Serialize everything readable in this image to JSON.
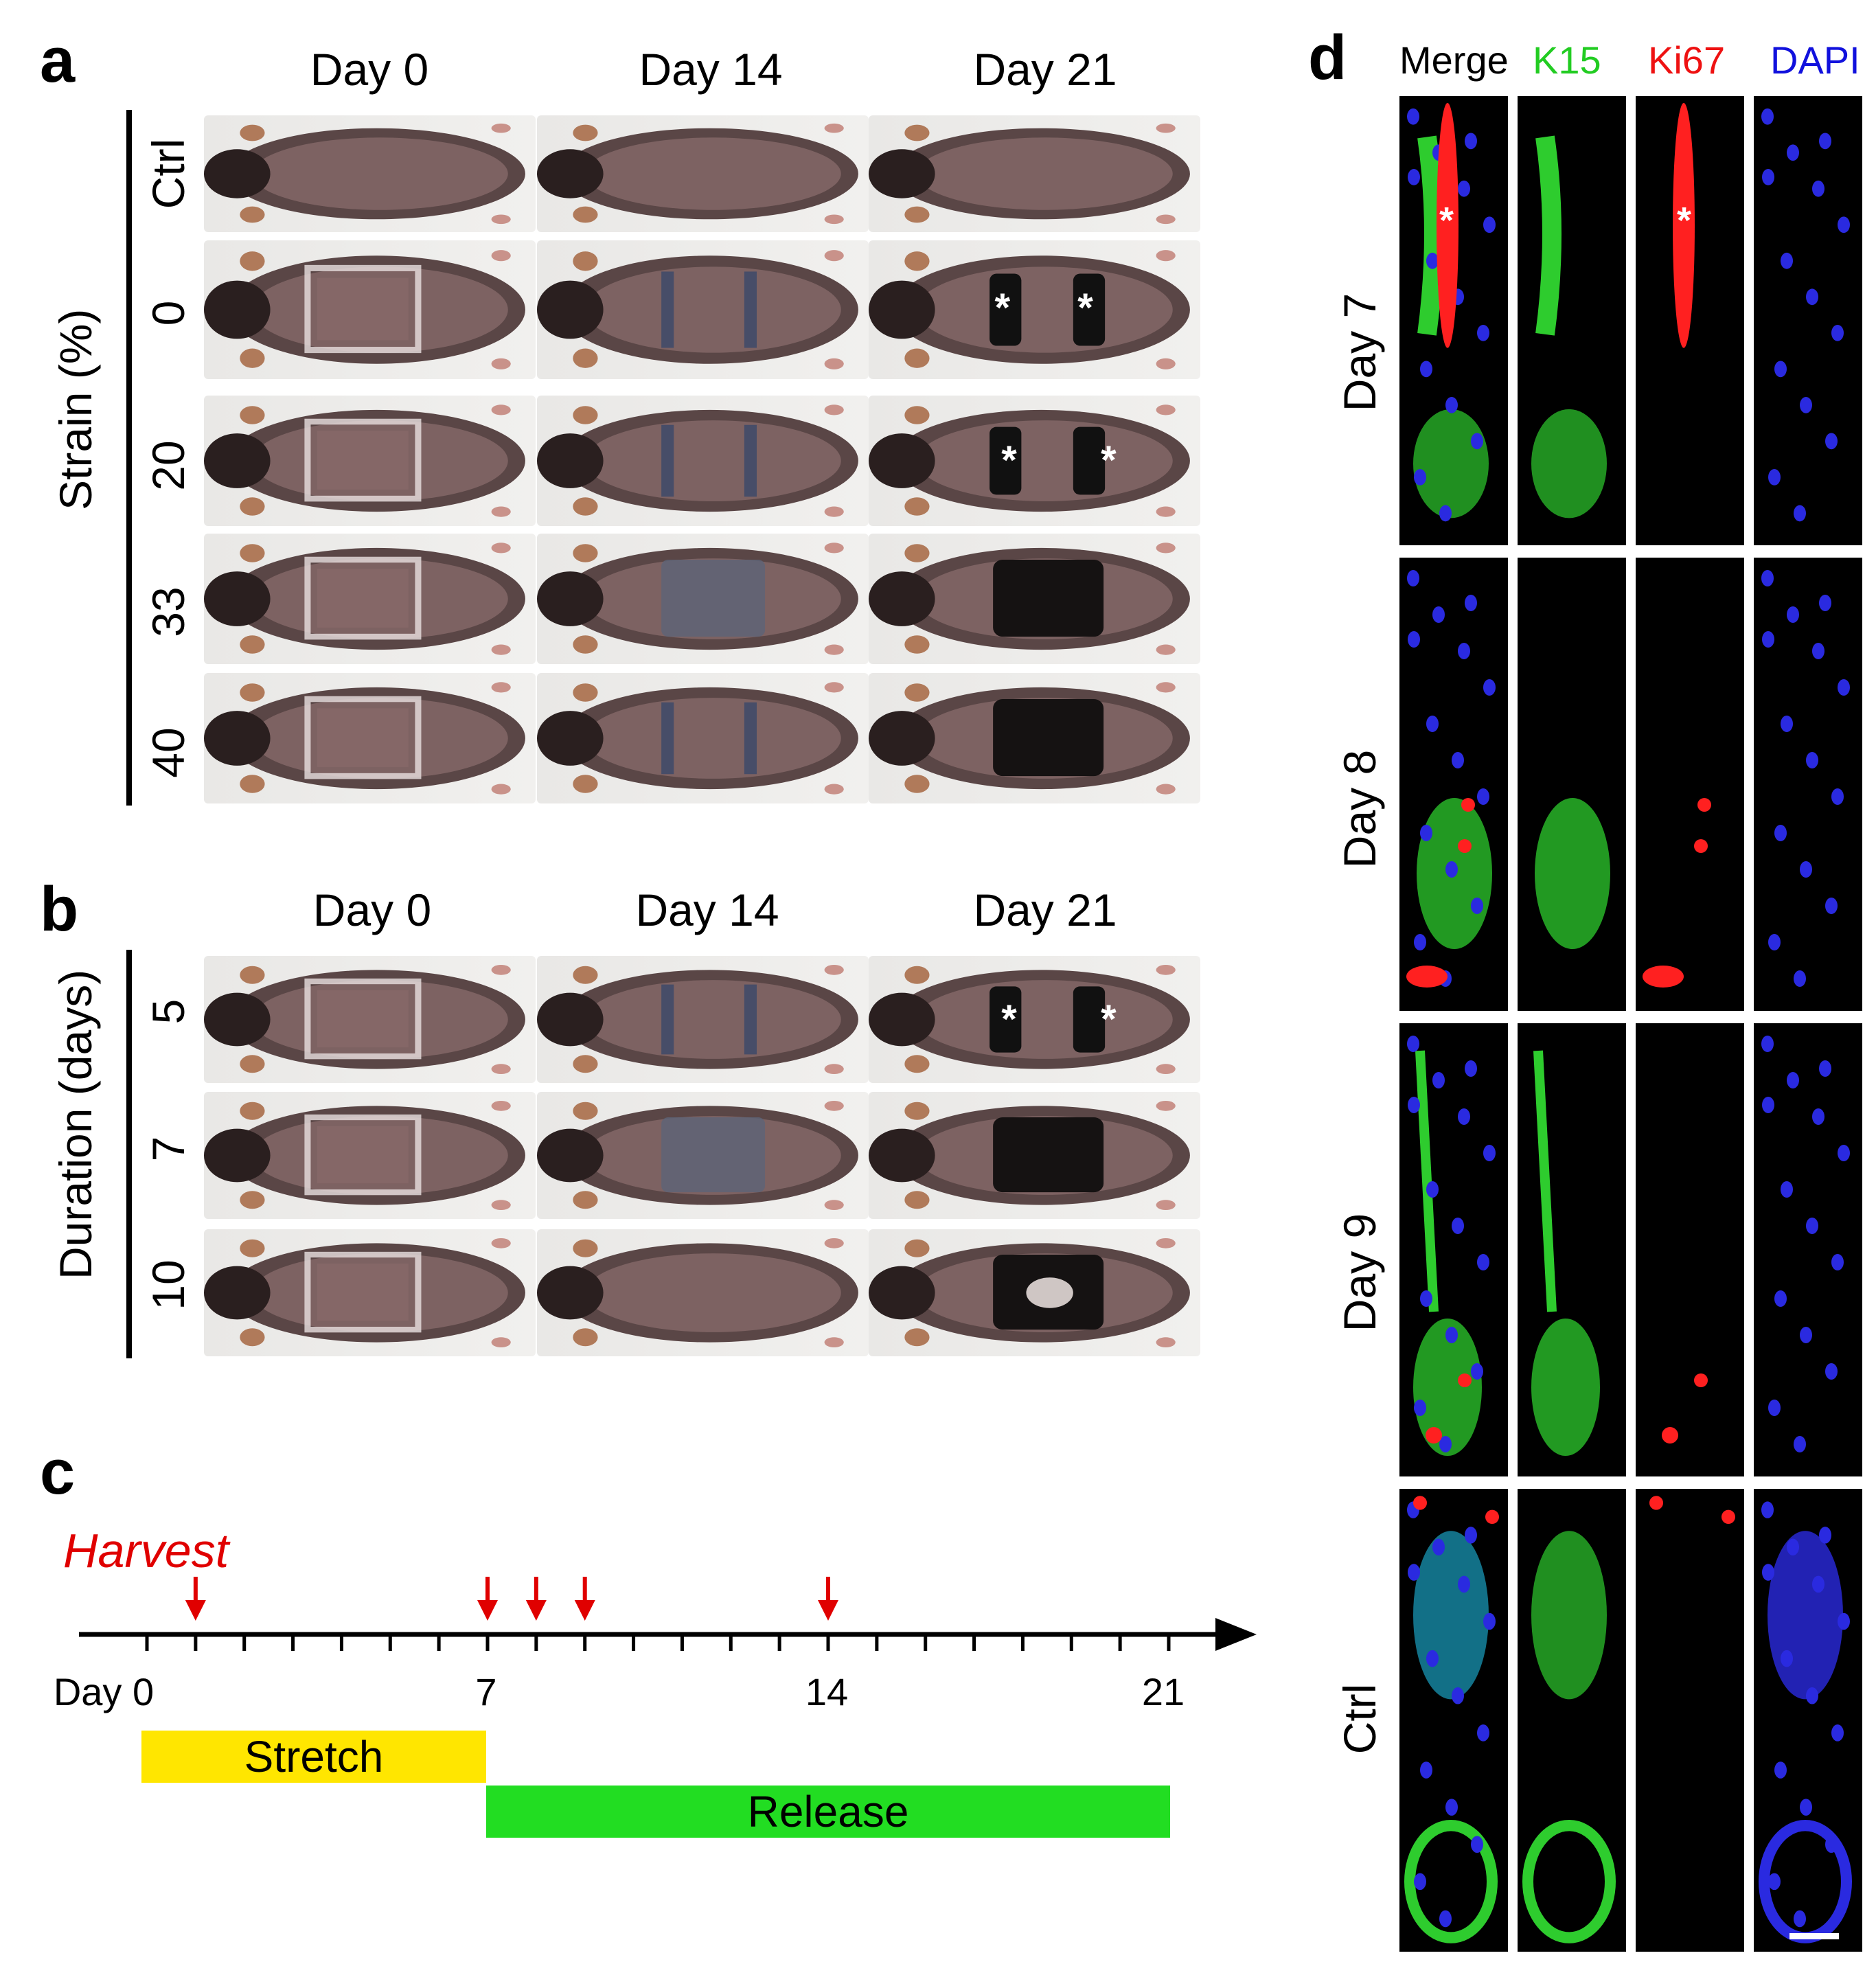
{
  "panel_a": {
    "letter": "a",
    "columns": [
      "Day 0",
      "Day 14",
      "Day 21"
    ],
    "row_title": "Strain (%)",
    "rows": [
      "Ctrl",
      "0",
      "20",
      "33",
      "40"
    ]
  },
  "panel_b": {
    "letter": "b",
    "columns": [
      "Day 0",
      "Day 14",
      "Day 21"
    ],
    "row_title": "Duration (days)",
    "rows": [
      "5",
      "7",
      "10"
    ]
  },
  "panel_c": {
    "letter": "c",
    "harvest_label": "Harvest",
    "tick_labels": [
      "Day 0",
      "7",
      "14",
      "21"
    ],
    "harvest_days": [
      1,
      7,
      8,
      9,
      14
    ],
    "axis_max_day": 21,
    "stretch_label": "Stretch",
    "release_label": "Release",
    "stretch_range": [
      0,
      7
    ],
    "release_range": [
      7,
      21
    ],
    "colors": {
      "stretch": "#FFE600",
      "release": "#22DD22",
      "harvest": "#E00000",
      "axis": "#000000"
    }
  },
  "panel_d": {
    "letter": "d",
    "channels": [
      {
        "name": "Merge",
        "color": "#000000"
      },
      {
        "name": "K15",
        "color": "#22CC22"
      },
      {
        "name": "Ki67",
        "color": "#EE1111"
      },
      {
        "name": "DAPI",
        "color": "#1111DD"
      }
    ],
    "rows": [
      "Day 7",
      "Day 8",
      "Day 9",
      "Ctrl"
    ],
    "asterisk": "*"
  },
  "asterisk": "*"
}
